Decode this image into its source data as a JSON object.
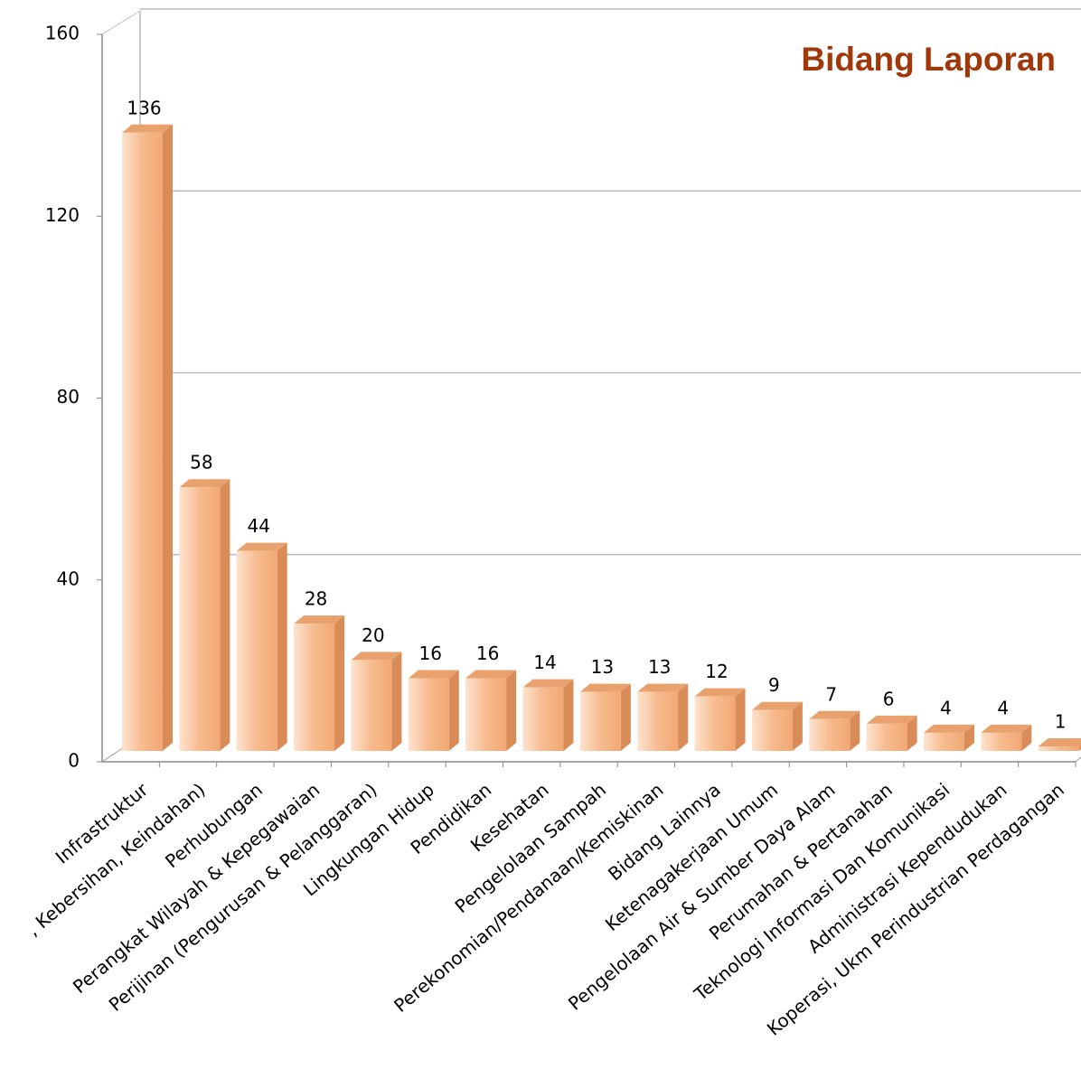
{
  "chart_data": {
    "type": "bar3d",
    "title": "Bidang Laporan",
    "categories": [
      "Infrastruktur",
      ", Kebersihan, Keindahan)",
      "Perhubungan",
      "Perangkat Wilayah & Kepegawaian",
      "Perijinan (Pengurusan & Pelanggaran)",
      "Lingkungan Hidup",
      "Pendidikan",
      "Kesehatan",
      "Pengelolaan Sampah",
      "Perekonomian/Pendanaan/Kemiskinan",
      "Bidang Lainnya",
      "Ketenagakerjaan Umum",
      "Pengelolaan Air & Sumber Daya Alam",
      "Perumahan & Pertanahan",
      "Teknologi Informasi Dan Komunikasi",
      "Administrasi Kependudukan",
      "Koperasi, Ukm Perindustrian Perdagangan"
    ],
    "values": [
      136,
      58,
      44,
      28,
      20,
      16,
      16,
      14,
      13,
      13,
      12,
      9,
      7,
      6,
      4,
      4,
      1
    ],
    "color": "#f6bb8e",
    "ylim": [
      0,
      160
    ],
    "yticks": [
      0,
      40,
      80,
      120,
      160
    ],
    "grid": true
  }
}
